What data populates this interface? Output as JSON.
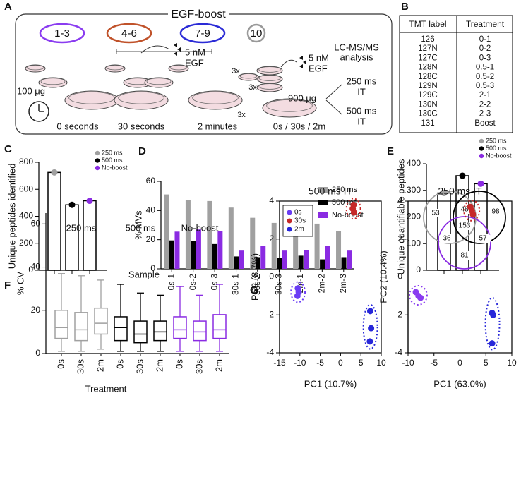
{
  "panel_labels": [
    "A",
    "B",
    "C",
    "D",
    "E",
    "F",
    "G"
  ],
  "diagram": {
    "title": "EGF-boost",
    "groups": [
      "1-3",
      "4-6",
      "7-9",
      "10"
    ],
    "group_colors": [
      "#8a3cf0",
      "#c0522a",
      "#2b2bd6",
      "#999999"
    ],
    "egf_dose": "5 nM",
    "egf_word": "EGF",
    "amount_left": "100 μg",
    "timepoints": [
      "0 seconds",
      "30 seconds",
      "2 minutes"
    ],
    "combined_time": "0s / 30s / 2m",
    "multiplier": "3x",
    "amount_right": "900 μg",
    "analysis": [
      "LC-MS/MS",
      "analysis"
    ],
    "outputs": [
      {
        "lines": [
          "250 ms",
          "IT"
        ],
        "color": "#999999"
      },
      {
        "lines": [
          "500 ms",
          "IT"
        ],
        "color": "#000000"
      }
    ]
  },
  "table": {
    "header": [
      "TMT label",
      "Treatment"
    ],
    "rows": [
      [
        "126",
        "0-1"
      ],
      [
        "127N",
        "0-2"
      ],
      [
        "127C",
        "0-3"
      ],
      [
        "128N",
        "0.5-1"
      ],
      [
        "128C",
        "0.5-2"
      ],
      [
        "129N",
        "0.5-3"
      ],
      [
        "129C",
        "2-1"
      ],
      [
        "130N",
        "2-2"
      ],
      [
        "130C",
        "2-3"
      ],
      [
        "131",
        "Boost"
      ]
    ]
  },
  "chart_data": [
    {
      "type": "dotbar",
      "ylabel": "Unique peptides identified",
      "ylim": [
        0,
        800
      ],
      "yticks": [
        0,
        200,
        400,
        600,
        800
      ],
      "legend": "upper right",
      "series": [
        {
          "name": "250 ms",
          "color": "#a0a0a0",
          "values": [
            725
          ]
        },
        {
          "name": "500 ms",
          "color": "#000000",
          "values": [
            485
          ]
        },
        {
          "name": "No-boost",
          "color": "#8a2be2",
          "values": [
            515
          ]
        }
      ]
    },
    {
      "type": "bar",
      "ylabel": "% MVs",
      "xlabel": "Sample",
      "ylim": [
        0,
        60
      ],
      "yticks": [
        0,
        20,
        40,
        60
      ],
      "legend": "upper right",
      "categories": [
        "0s-1",
        "0s-2",
        "0s-3",
        "30s-1",
        "30s-2",
        "30s-3",
        "2m-1",
        "2m-2",
        "2m-3"
      ],
      "series": [
        {
          "name": "250 ms",
          "color": "#a0a0a0",
          "values": [
            51,
            47,
            46.5,
            42,
            35,
            31.5,
            31.5,
            31,
            26
          ]
        },
        {
          "name": "500 ms",
          "color": "#000000",
          "values": [
            19.5,
            19,
            17,
            8.5,
            8,
            7.5,
            9,
            6.5,
            8
          ]
        },
        {
          "name": "No-boost",
          "color": "#8a2be2",
          "values": [
            25.5,
            27,
            26,
            12.5,
            15.5,
            12.5,
            13,
            15.5,
            12.5
          ]
        }
      ]
    },
    {
      "type": "dotbar",
      "ylabel": "Unique quantifiable peptides",
      "ylim": [
        0,
        400
      ],
      "yticks": [
        0,
        100,
        200,
        300,
        400
      ],
      "legend": "upper right",
      "series": [
        {
          "name": "250 ms",
          "color": "#a0a0a0",
          "values": [
            290
          ]
        },
        {
          "name": "500 ms",
          "color": "#000000",
          "values": [
            355
          ]
        },
        {
          "name": "No-boost",
          "color": "#8a2be2",
          "values": [
            325
          ]
        }
      ],
      "venn": [
        53,
        48,
        98,
        153,
        36,
        57,
        81
      ]
    },
    {
      "type": "box",
      "ylabel": "% CV",
      "xlabel": "Treatment",
      "ylim": [
        0,
        65
      ],
      "yticks": [
        0,
        20,
        40,
        60
      ],
      "categories": [
        "0s",
        "30s",
        "2m"
      ],
      "series": [
        {
          "name": "250 ms",
          "color": "#a0a0a0",
          "values": [
            {
              "whislo": 1,
              "q1": 7,
              "med": 12,
              "q3": 20,
              "whishi": 37
            },
            {
              "whislo": 1,
              "q1": 6,
              "med": 11,
              "q3": 19,
              "whishi": 36
            },
            {
              "whislo": 2,
              "q1": 9,
              "med": 14,
              "q3": 21,
              "whishi": 34
            }
          ]
        },
        {
          "name": "500 ms",
          "color": "#000000",
          "values": [
            {
              "whislo": 1,
              "q1": 6,
              "med": 12,
              "q3": 17,
              "whishi": 32
            },
            {
              "whislo": 1,
              "q1": 5,
              "med": 9,
              "q3": 15,
              "whishi": 28
            },
            {
              "whislo": 1,
              "q1": 6,
              "med": 10,
              "q3": 15,
              "whishi": 27
            }
          ]
        },
        {
          "name": "No-boost",
          "color": "#8a2be2",
          "values": [
            {
              "whislo": 1,
              "q1": 7,
              "med": 11,
              "q3": 17,
              "whishi": 31
            },
            {
              "whislo": 1,
              "q1": 6,
              "med": 10,
              "q3": 15,
              "whishi": 27
            },
            {
              "whislo": 1,
              "q1": 7,
              "med": 11,
              "q3": 18,
              "whishi": 32
            }
          ]
        }
      ]
    },
    {
      "type": "scatter",
      "title": "500 ms IT",
      "xlabel": "PC1 (10.7%)",
      "ylabel": "PC2 (8.7%)",
      "xlim": [
        -15,
        10
      ],
      "xticks": [
        -15,
        -10,
        -5,
        0,
        5,
        10
      ],
      "ylim": [
        -4,
        4
      ],
      "yticks": [
        -4,
        -2,
        0,
        2,
        4
      ],
      "legend": "upper left",
      "series": [
        {
          "name": "0s",
          "color": "#6a3df5",
          "x": [
            -10.5,
            -10.6,
            -10.3
          ],
          "values": [
            -0.6,
            -1.0,
            -0.8
          ]
        },
        {
          "name": "30s",
          "color": "#c62828",
          "x": [
            3.2,
            3.3,
            3.0
          ],
          "values": [
            3.8,
            3.4,
            3.6
          ]
        },
        {
          "name": "2m",
          "color": "#2727d9",
          "x": [
            7.3,
            7.5,
            7.2
          ],
          "values": [
            -1.8,
            -2.7,
            -3.4
          ]
        }
      ]
    },
    {
      "type": "scatter",
      "title": "250 ms IT",
      "xlabel": "PC1 (63.0%)",
      "ylabel": "PC2 (10.4%)",
      "xlim": [
        -10,
        10
      ],
      "xticks": [
        -10,
        -5,
        0,
        5,
        10
      ],
      "ylim": [
        -4,
        4
      ],
      "yticks": [
        -4,
        -2,
        0,
        2,
        4
      ],
      "series": [
        {
          "color": "#8a3cf0",
          "x": [
            -8.5,
            -8.0,
            -7.6
          ],
          "values": [
            -0.8,
            -1.0,
            -1.1
          ]
        },
        {
          "color": "#c62828",
          "x": [
            2.0,
            2.3,
            2.5
          ],
          "values": [
            3.7,
            3.5,
            3.3
          ]
        },
        {
          "color": "#2727d9",
          "x": [
            6.2,
            6.4,
            6.2
          ],
          "values": [
            -1.9,
            -2.0,
            -3.5
          ]
        }
      ]
    }
  ]
}
